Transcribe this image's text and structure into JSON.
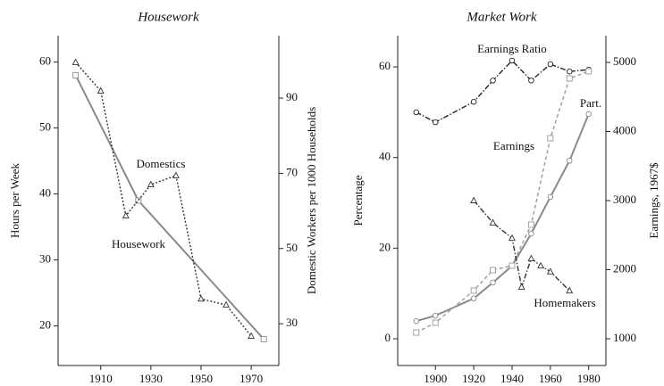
{
  "chart_data": [
    {
      "type": "line",
      "title": "Housework",
      "ylabel": "Hours per Week",
      "y2label": "Domestic Workers per 1000 Households",
      "xlim": [
        1893,
        1981
      ],
      "xticks": [
        1910,
        1930,
        1950,
        1970
      ],
      "ylim": [
        14,
        64
      ],
      "yticks": [
        20,
        30,
        40,
        50,
        60
      ],
      "y2lim": [
        18.9,
        106.6
      ],
      "y2ticks": [
        30,
        50,
        70,
        90
      ],
      "annotations": [
        "Domestics",
        "Housework"
      ],
      "series": [
        {
          "name": "Housework",
          "color": "#8a8a8a",
          "dash": "solid",
          "marker": "square",
          "axis": "y",
          "x": [
            1900,
            1925,
            1975
          ],
          "values": [
            58,
            39,
            18
          ]
        },
        {
          "name": "Domestics",
          "color": "#333333",
          "dash": "dotted",
          "marker": "triangle",
          "axis": "y2",
          "x": [
            1900,
            1910,
            1920,
            1930,
            1940,
            1950,
            1960,
            1970
          ],
          "values": [
            99.5,
            91.9,
            58.7,
            67,
            69.4,
            36.6,
            35,
            26.7
          ]
        }
      ]
    },
    {
      "type": "line",
      "title": "Market Work",
      "ylabel": "Percentage",
      "y2label": "Earnings, 1967$",
      "xlim": [
        1880.3,
        1989
      ],
      "xticks": [
        1900,
        1920,
        1940,
        1960,
        1980
      ],
      "ylim": [
        -5.9,
        66.9
      ],
      "yticks": [
        0,
        20,
        40,
        60
      ],
      "y2lim": [
        613,
        5387
      ],
      "y2ticks": [
        1000,
        2000,
        3000,
        4000,
        5000
      ],
      "annotations": [
        "Earnings Ratio",
        "Earnings",
        "Part.",
        "Homemakers"
      ],
      "series": [
        {
          "name": "Earnings Ratio",
          "color": "#222222",
          "dash": "dashdot",
          "marker": "circle",
          "axis": "y",
          "x": [
            1890,
            1900,
            1920,
            1930,
            1940,
            1950,
            1960,
            1970,
            1980
          ],
          "values": [
            50,
            47.8,
            52.3,
            57,
            61.4,
            57,
            60.6,
            59,
            59.4
          ]
        },
        {
          "name": "Part.",
          "color": "#8a8a8a",
          "dash": "solid",
          "marker": "circle",
          "axis": "y",
          "x": [
            1890,
            1900,
            1920,
            1930,
            1940,
            1950,
            1960,
            1970,
            1980
          ],
          "values": [
            3.9,
            5.1,
            8.9,
            12.4,
            16.1,
            23.2,
            31.3,
            39.3,
            49.6
          ]
        },
        {
          "name": "Earnings",
          "color": "#999999",
          "dash": "dashed",
          "marker": "square",
          "axis": "y2",
          "x": [
            1890,
            1900,
            1920,
            1930,
            1940,
            1950,
            1960,
            1970,
            1980
          ],
          "values": [
            1090,
            1232,
            1697,
            1994,
            2058,
            2652,
            3903,
            4768,
            4871
          ]
        },
        {
          "name": "Homemakers",
          "color": "#333333",
          "dash": "dashdot",
          "marker": "triangle",
          "axis": "y",
          "x": [
            1920,
            1930,
            1940,
            1945,
            1950,
            1955,
            1960,
            1970
          ],
          "values": [
            30.5,
            25.6,
            22.2,
            11.4,
            17.7,
            16.1,
            14.8,
            10.6
          ]
        }
      ]
    }
  ]
}
